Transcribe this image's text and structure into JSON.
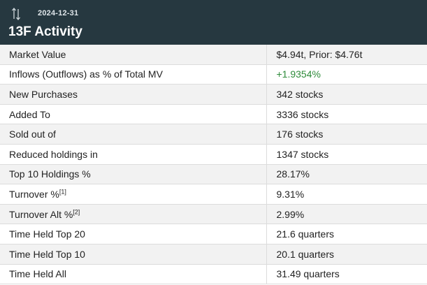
{
  "header": {
    "date": "2024-12-31",
    "title": "13F Activity",
    "icon": "sort-arrows-icon"
  },
  "rows": [
    {
      "label": "Market Value",
      "sup": "",
      "value": "$4.94t, Prior: $4.76t"
    },
    {
      "label": "Inflows (Outflows) as % of Total MV",
      "sup": "",
      "value": "+1.9354%"
    },
    {
      "label": "New Purchases",
      "sup": "",
      "value": "342 stocks"
    },
    {
      "label": "Added To",
      "sup": "",
      "value": "3336 stocks"
    },
    {
      "label": "Sold out of",
      "sup": "",
      "value": "176 stocks"
    },
    {
      "label": "Reduced holdings in",
      "sup": "",
      "value": "1347 stocks"
    },
    {
      "label": "Top 10 Holdings %",
      "sup": "",
      "value": "28.17%"
    },
    {
      "label": "Turnover %",
      "sup": "[1]",
      "value": "9.31%"
    },
    {
      "label": "Turnover Alt %",
      "sup": "[2]",
      "value": "2.99%"
    },
    {
      "label": "Time Held Top 20",
      "sup": "",
      "value": "21.6 quarters"
    },
    {
      "label": "Time Held Top 10",
      "sup": "",
      "value": "20.1 quarters"
    },
    {
      "label": "Time Held All",
      "sup": "",
      "value": "31.49 quarters"
    }
  ],
  "colors": {
    "header_bg": "#263840",
    "positive": "#2e8b3a"
  }
}
